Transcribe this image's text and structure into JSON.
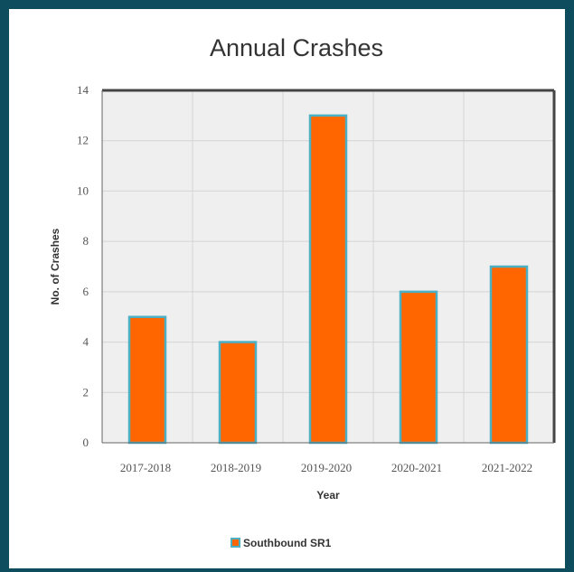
{
  "chart_data": {
    "type": "bar",
    "title": "Annual Crashes",
    "xlabel": "Year",
    "ylabel": "No. of Crashes",
    "categories": [
      "2017-2018",
      "2018-2019",
      "2019-2020",
      "2020-2021",
      "2021-2022"
    ],
    "series": [
      {
        "name": "Southbound SR1",
        "values": [
          5,
          4,
          13,
          6,
          7
        ]
      }
    ],
    "ylim": [
      0,
      14
    ],
    "yticks": [
      0,
      2,
      4,
      6,
      8,
      10,
      12,
      14
    ],
    "grid": true,
    "legend": "bottom",
    "colors": {
      "bar_fill": "#ff6600",
      "bar_edge": "#4bb0c4",
      "plot_bg": "#efefef",
      "grid": "#d4d4d4",
      "frame": "#0e4d5e"
    }
  }
}
